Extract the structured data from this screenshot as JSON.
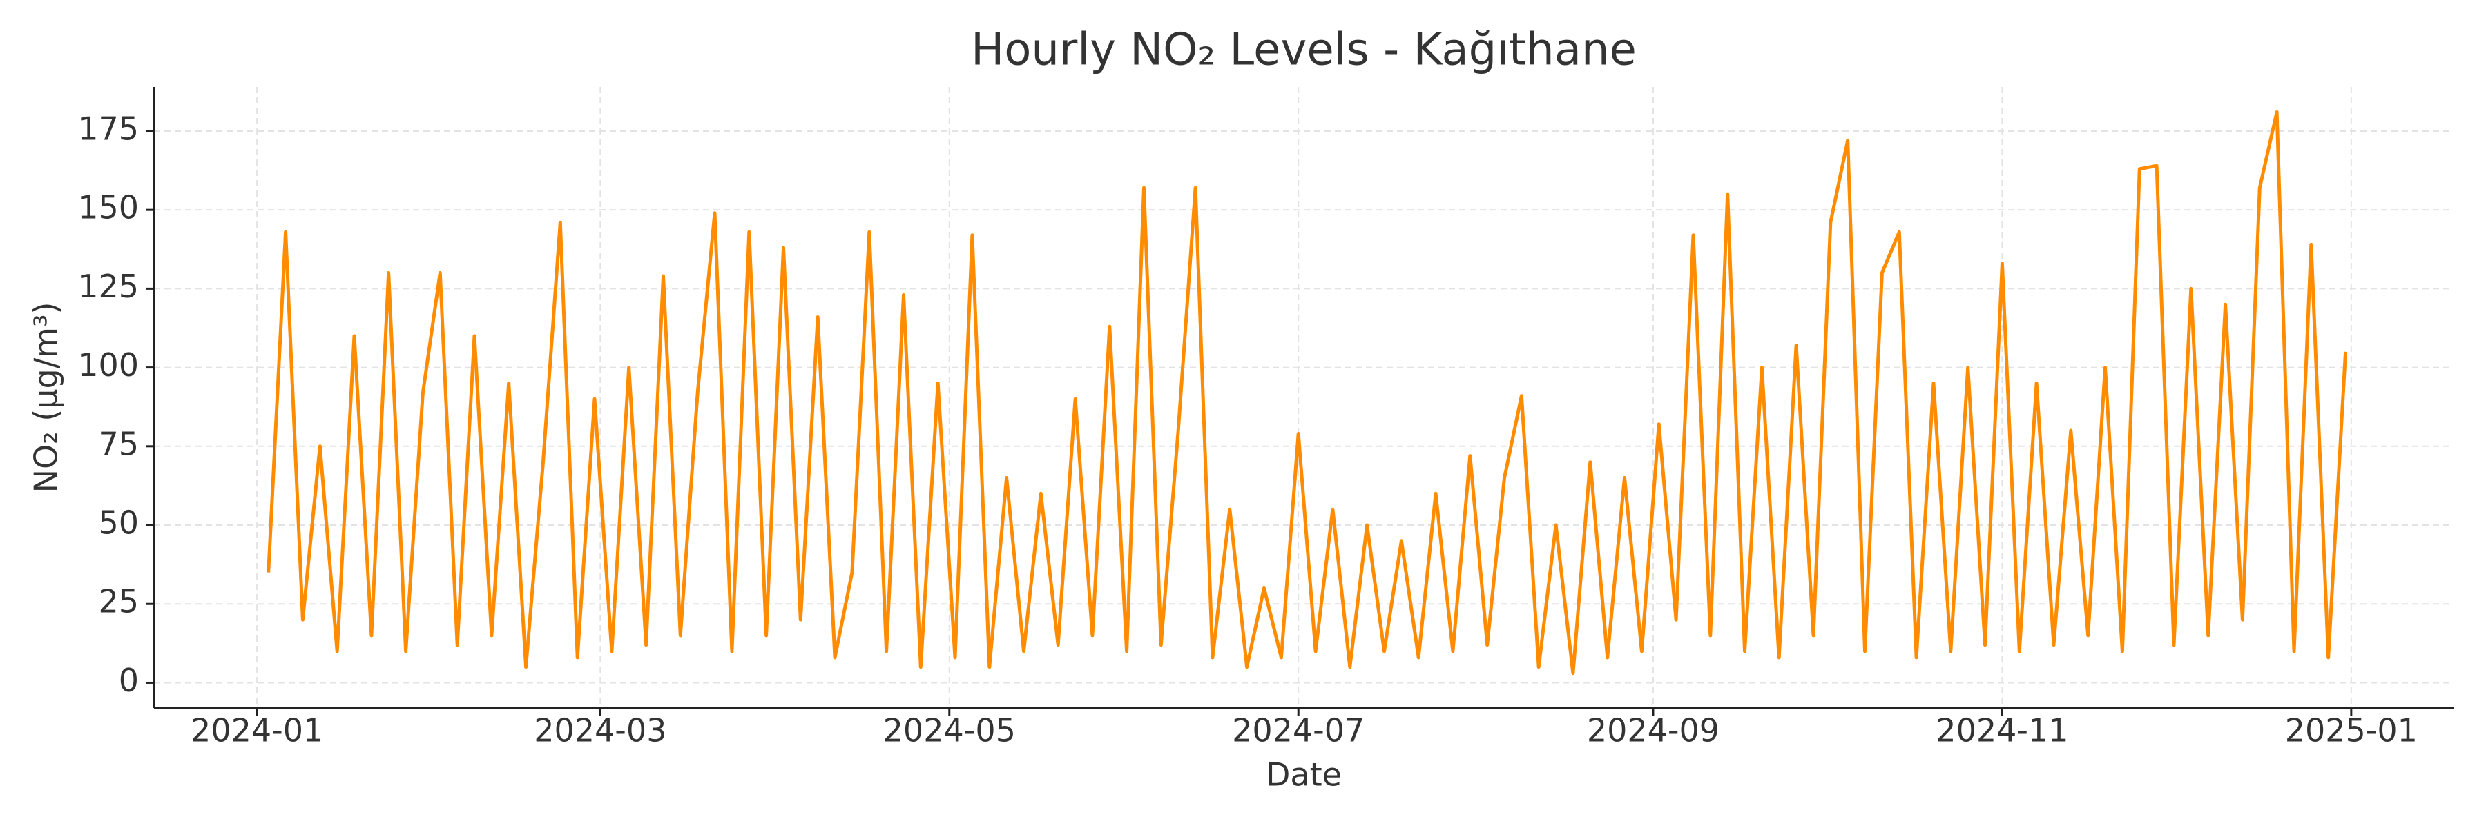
{
  "chart_data": {
    "type": "line",
    "title": "Hourly NO₂ Levels - Kağıthane",
    "xlabel": "Date",
    "ylabel": "NO₂ (µg/m³)",
    "x": [
      "2024-01-03",
      "2024-01-06",
      "2024-01-09",
      "2024-01-12",
      "2024-01-15",
      "2024-01-18",
      "2024-01-21",
      "2024-01-24",
      "2024-01-27",
      "2024-01-30",
      "2024-02-02",
      "2024-02-05",
      "2024-02-08",
      "2024-02-11",
      "2024-02-14",
      "2024-02-17",
      "2024-02-20",
      "2024-02-23",
      "2024-02-26",
      "2024-02-29",
      "2024-03-03",
      "2024-03-06",
      "2024-03-09",
      "2024-03-12",
      "2024-03-15",
      "2024-03-18",
      "2024-03-21",
      "2024-03-24",
      "2024-03-27",
      "2024-03-30",
      "2024-04-02",
      "2024-04-05",
      "2024-04-08",
      "2024-04-11",
      "2024-04-14",
      "2024-04-17",
      "2024-04-20",
      "2024-04-23",
      "2024-04-26",
      "2024-04-29",
      "2024-05-02",
      "2024-05-05",
      "2024-05-08",
      "2024-05-11",
      "2024-05-14",
      "2024-05-17",
      "2024-05-20",
      "2024-05-23",
      "2024-05-26",
      "2024-05-29",
      "2024-06-01",
      "2024-06-04",
      "2024-06-07",
      "2024-06-10",
      "2024-06-13",
      "2024-06-16",
      "2024-06-19",
      "2024-06-22",
      "2024-06-25",
      "2024-06-28",
      "2024-07-01",
      "2024-07-04",
      "2024-07-07",
      "2024-07-10",
      "2024-07-13",
      "2024-07-16",
      "2024-07-19",
      "2024-07-22",
      "2024-07-25",
      "2024-07-28",
      "2024-07-31",
      "2024-08-03",
      "2024-08-06",
      "2024-08-09",
      "2024-08-12",
      "2024-08-15",
      "2024-08-18",
      "2024-08-21",
      "2024-08-24",
      "2024-08-27",
      "2024-08-30",
      "2024-09-02",
      "2024-09-05",
      "2024-09-08",
      "2024-09-11",
      "2024-09-14",
      "2024-09-17",
      "2024-09-20",
      "2024-09-23",
      "2024-09-26",
      "2024-09-29",
      "2024-10-02",
      "2024-10-05",
      "2024-10-08",
      "2024-10-11",
      "2024-10-14",
      "2024-10-17",
      "2024-10-20",
      "2024-10-23",
      "2024-10-26",
      "2024-10-29",
      "2024-11-01",
      "2024-11-04",
      "2024-11-07",
      "2024-11-10",
      "2024-11-13",
      "2024-11-16",
      "2024-11-19",
      "2024-11-22",
      "2024-11-25",
      "2024-11-28",
      "2024-12-01",
      "2024-12-04",
      "2024-12-07",
      "2024-12-10",
      "2024-12-13",
      "2024-12-16",
      "2024-12-19",
      "2024-12-22",
      "2024-12-25",
      "2024-12-28",
      "2024-12-31"
    ],
    "series": [
      {
        "color": "#ff8c00",
        "values": [
          35,
          143,
          20,
          75,
          10,
          110,
          15,
          130,
          10,
          92,
          130,
          12,
          110,
          15,
          95,
          5,
          70,
          146,
          8,
          90,
          10,
          100,
          12,
          129,
          15,
          92,
          149,
          10,
          143,
          15,
          138,
          20,
          116,
          8,
          35,
          143,
          10,
          123,
          5,
          95,
          8,
          142,
          5,
          65,
          10,
          60,
          12,
          90,
          15,
          113,
          10,
          157,
          12,
          80,
          157,
          8,
          55,
          5,
          30,
          8,
          79,
          10,
          55,
          5,
          50,
          10,
          45,
          8,
          60,
          10,
          72,
          12,
          65,
          91,
          5,
          50,
          3,
          70,
          8,
          65,
          10,
          82,
          20,
          142,
          15,
          155,
          10,
          100,
          8,
          107,
          15,
          146,
          172,
          10,
          130,
          143,
          8,
          95,
          10,
          100,
          12,
          133,
          10,
          95,
          12,
          80,
          15,
          100,
          10,
          163,
          164,
          12,
          125,
          15,
          120,
          20,
          157,
          181,
          10,
          139,
          8,
          105
        ]
      }
    ],
    "xlim": [
      "2023-12-14",
      "2025-01-19"
    ],
    "xticks": [
      {
        "value": "2024-01-01",
        "label": "2024-01"
      },
      {
        "value": "2024-03-01",
        "label": "2024-03"
      },
      {
        "value": "2024-05-01",
        "label": "2024-05"
      },
      {
        "value": "2024-07-01",
        "label": "2024-07"
      },
      {
        "value": "2024-09-01",
        "label": "2024-09"
      },
      {
        "value": "2024-11-01",
        "label": "2024-11"
      },
      {
        "value": "2025-01-01",
        "label": "2025-01"
      }
    ],
    "ylim": [
      -8,
      189
    ],
    "yticks": [
      0,
      25,
      50,
      75,
      100,
      125,
      150,
      175
    ],
    "grid": true
  }
}
